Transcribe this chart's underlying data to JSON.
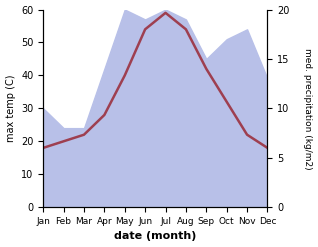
{
  "months": [
    "Jan",
    "Feb",
    "Mar",
    "Apr",
    "May",
    "Jun",
    "Jul",
    "Aug",
    "Sep",
    "Oct",
    "Nov",
    "Dec"
  ],
  "max_temp": [
    18,
    20,
    22,
    28,
    40,
    54,
    59,
    54,
    42,
    32,
    22,
    18
  ],
  "precipitation": [
    10,
    8,
    8,
    14,
    20,
    19,
    20,
    19,
    15,
    17,
    18,
    13
  ],
  "temp_ylim": [
    0,
    60
  ],
  "precip_ylim": [
    0,
    20
  ],
  "precip_yticks": [
    0,
    5,
    10,
    15,
    20
  ],
  "temp_yticks": [
    0,
    10,
    20,
    30,
    40,
    50,
    60
  ],
  "temp_color": "#9e3f50",
  "precip_fill_color": "#b8c0e8",
  "xlabel": "date (month)",
  "ylabel_left": "max temp (C)",
  "ylabel_right": "med. precipitation (kg/m2)",
  "bg_color": "#ffffff",
  "temp_linewidth": 1.8
}
